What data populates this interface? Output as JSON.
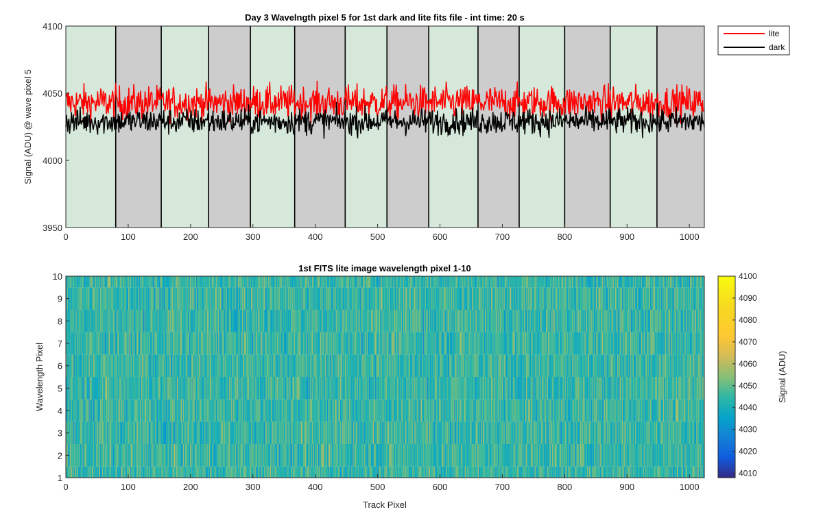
{
  "chart_data": [
    {
      "type": "line",
      "title": "Day 3 Wavelngth pixel 5 for 1st dark and lite fits file - int time: 20 s",
      "xlabel": "",
      "ylabel": "Signal (ADU) @ wave pixel 5",
      "xlim": [
        0,
        1024
      ],
      "ylim": [
        3950,
        4100
      ],
      "xticks": [
        0,
        100,
        200,
        300,
        400,
        500,
        600,
        700,
        800,
        900,
        1000
      ],
      "yticks": [
        3950,
        4000,
        4050,
        4100
      ],
      "legend_position": "outside-top-right",
      "series": [
        {
          "name": "lite",
          "color": "#ff0000",
          "mean": 4043,
          "noise_amplitude": 9,
          "x_range": [
            0,
            1024
          ]
        },
        {
          "name": "dark",
          "color": "#000000",
          "mean": 4029,
          "noise_amplitude": 7,
          "x_range": [
            0,
            1024
          ]
        }
      ],
      "background_bands": [
        {
          "x_start": 0,
          "x_end": 80,
          "color": "#d6e8da"
        },
        {
          "x_start": 80,
          "x_end": 153,
          "color": "#cdcdcd"
        },
        {
          "x_start": 153,
          "x_end": 229,
          "color": "#d6e8da"
        },
        {
          "x_start": 229,
          "x_end": 296,
          "color": "#cdcdcd"
        },
        {
          "x_start": 296,
          "x_end": 367,
          "color": "#d6e8da"
        },
        {
          "x_start": 367,
          "x_end": 448,
          "color": "#cdcdcd"
        },
        {
          "x_start": 448,
          "x_end": 515,
          "color": "#d6e8da"
        },
        {
          "x_start": 515,
          "x_end": 582,
          "color": "#cdcdcd"
        },
        {
          "x_start": 582,
          "x_end": 661,
          "color": "#d6e8da"
        },
        {
          "x_start": 661,
          "x_end": 727,
          "color": "#cdcdcd"
        },
        {
          "x_start": 727,
          "x_end": 800,
          "color": "#d6e8da"
        },
        {
          "x_start": 800,
          "x_end": 873,
          "color": "#cdcdcd"
        },
        {
          "x_start": 873,
          "x_end": 948,
          "color": "#d6e8da"
        },
        {
          "x_start": 948,
          "x_end": 1024,
          "color": "#cdcdcd"
        }
      ]
    },
    {
      "type": "heatmap",
      "title": "1st FITS lite image wavelength pixel 1-10",
      "xlabel": "Track Pixel",
      "ylabel": "Wavelength Pixel",
      "xlim": [
        0,
        1024
      ],
      "ylim": [
        1,
        10
      ],
      "xticks": [
        0,
        100,
        200,
        300,
        400,
        500,
        600,
        700,
        800,
        900,
        1000
      ],
      "yticks": [
        1,
        2,
        3,
        4,
        5,
        6,
        7,
        8,
        9,
        10
      ],
      "rows": 10,
      "columns": 1024,
      "value_mean": 4045,
      "value_spread": 12,
      "colorbar": {
        "label": "Signal (ADU)",
        "range": [
          4008,
          4100
        ],
        "ticks": [
          4010,
          4020,
          4030,
          4040,
          4050,
          4060,
          4070,
          4080,
          4090,
          4100
        ],
        "colormap": "parula"
      }
    }
  ]
}
